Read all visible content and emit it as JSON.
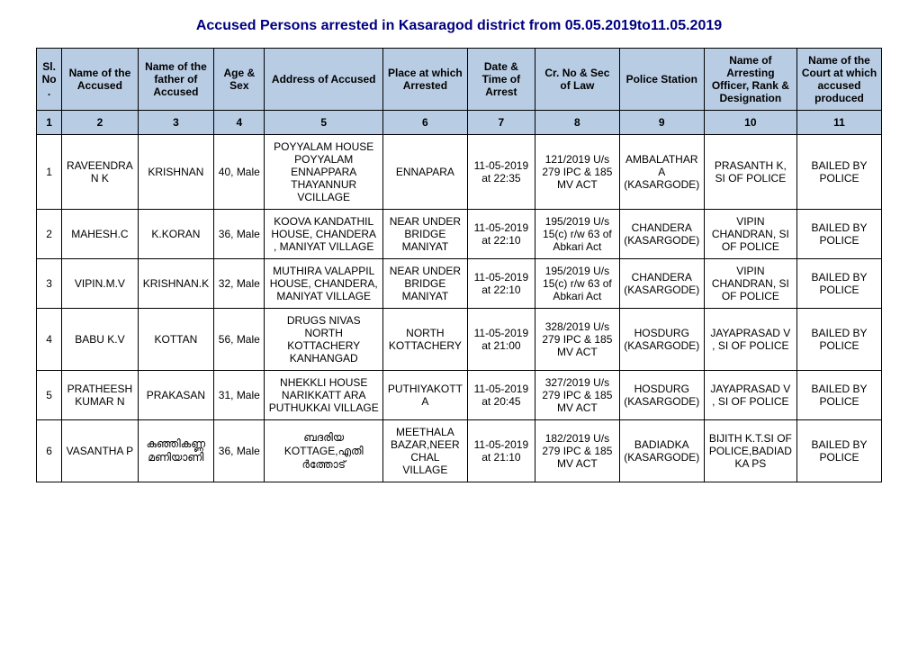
{
  "title": "Accused Persons arrested in    Kasaragod  district from   05.05.2019to11.05.2019",
  "headers": {
    "sl": "Sl. No.",
    "name": "Name of the Accused",
    "father": "Name of the father of Accused",
    "age": "Age & Sex",
    "address": "Address of Accused",
    "place": "Place at which Arrested",
    "date": "Date & Time of Arrest",
    "cr": "Cr. No & Sec of Law",
    "station": "Police Station",
    "officer": "Name of Arresting Officer, Rank & Designation",
    "court": "Name of the Court at which accused produced"
  },
  "numRow": [
    "1",
    "2",
    "3",
    "4",
    "5",
    "6",
    "7",
    "8",
    "9",
    "10",
    "11"
  ],
  "rows": [
    {
      "sl": "1",
      "name": "RAVEENDRAN K",
      "father": "KRISHNAN",
      "age": "40, Male",
      "address": "POYYALAM HOUSE POYYALAM ENNAPPARA THAYANNUR VCILLAGE",
      "place": "ENNAPARA",
      "date": "11-05-2019 at 22:35",
      "cr": "121/2019 U/s 279 IPC & 185 MV ACT",
      "station": "AMBALATHARA (KASARGODE)",
      "officer": "PRASANTH K, SI OF POLICE",
      "court": "BAILED BY POLICE"
    },
    {
      "sl": "2",
      "name": "MAHESH.C",
      "father": "K.KORAN",
      "age": "36, Male",
      "address": "KOOVA KANDATHIL HOUSE, CHANDERA , MANIYAT VILLAGE",
      "place": "NEAR UNDER BRIDGE MANIYAT",
      "date": "11-05-2019 at 22:10",
      "cr": "195/2019 U/s 15(c) r/w 63 of Abkari Act",
      "station": "CHANDERA (KASARGODE)",
      "officer": "VIPIN CHANDRAN, SI OF POLICE",
      "court": "BAILED BY POLICE"
    },
    {
      "sl": "3",
      "name": "VIPIN.M.V",
      "father": "KRISHNAN.K",
      "age": "32, Male",
      "address": "MUTHIRA VALAPPIL HOUSE, CHANDERA, MANIYAT VILLAGE",
      "place": "NEAR UNDER BRIDGE MANIYAT",
      "date": "11-05-2019 at 22:10",
      "cr": "195/2019 U/s 15(c) r/w 63 of Abkari Act",
      "station": "CHANDERA (KASARGODE)",
      "officer": "VIPIN CHANDRAN, SI OF POLICE",
      "court": "BAILED BY POLICE"
    },
    {
      "sl": "4",
      "name": "BABU K.V",
      "father": "KOTTAN",
      "age": "56, Male",
      "address": "DRUGS NIVAS NORTH KOTTACHERY KANHANGAD",
      "place": "NORTH KOTTACHERY",
      "date": "11-05-2019 at 21:00",
      "cr": "328/2019 U/s 279 IPC & 185 MV ACT",
      "station": "HOSDURG (KASARGODE)",
      "officer": "JAYAPRASAD V , SI OF POLICE",
      "court": "BAILED BY POLICE"
    },
    {
      "sl": "5",
      "name": "PRATHEESHKUMAR N",
      "father": "PRAKASAN",
      "age": "31, Male",
      "address": "NHEKKLI HOUSE NARIKKATT ARA PUTHUKKAI VILLAGE",
      "place": "PUTHIYAKOTTA",
      "date": "11-05-2019 at 20:45",
      "cr": "327/2019 U/s 279 IPC & 185 MV ACT",
      "station": "HOSDURG (KASARGODE)",
      "officer": "JAYAPRASAD V , SI OF POLICE",
      "court": "BAILED BY POLICE"
    },
    {
      "sl": "6",
      "name": "VASANTHA P",
      "father": "കുഞ്ഞികണ്ണ മണിയാണി",
      "age": "36, Male",
      "address": "ബദരിയ KOTTAGE,എതി ർത്തോട്",
      "place": "MEETHALA BAZAR,NEERCHAL VILLAGE",
      "date": "11-05-2019 at 21:10",
      "cr": "182/2019 U/s 279 IPC & 185 MV ACT",
      "station": "BADIADKA (KASARGODE)",
      "officer": "BIJITH K.T.SI OF POLICE,BADIADKA PS",
      "court": "BAILED BY POLICE"
    }
  ],
  "colors": {
    "headerBg": "#b8cce4",
    "titleColor": "#000080",
    "border": "#000000"
  }
}
